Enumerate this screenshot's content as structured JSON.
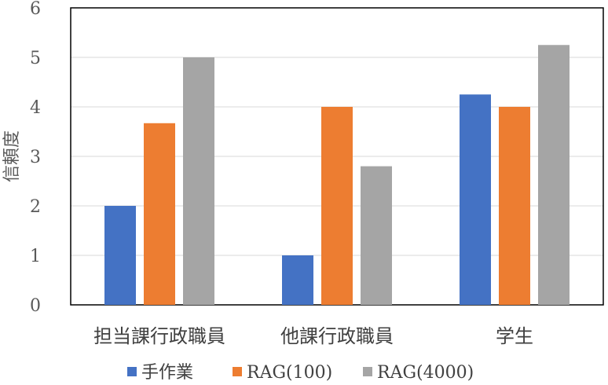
{
  "chart_data": {
    "type": "bar",
    "categories": [
      "担当課行政職員",
      "他課行政職員",
      "学生"
    ],
    "series": [
      {
        "name": "手作業",
        "values": [
          2,
          1,
          4.25
        ]
      },
      {
        "name": "RAG(100)",
        "values": [
          3.67,
          4,
          4
        ]
      },
      {
        "name": "RAG(4000)",
        "values": [
          5,
          2.8,
          5.25
        ]
      }
    ],
    "colors": [
      "#4472C4",
      "#ED7D31",
      "#A5A5A5"
    ],
    "ylabel": "信頼度",
    "ylim": [
      0,
      6
    ],
    "yticks": [
      "0",
      "1",
      "2",
      "3",
      "4",
      "5",
      "6"
    ],
    "grid": true,
    "legend_position": "bottom"
  }
}
